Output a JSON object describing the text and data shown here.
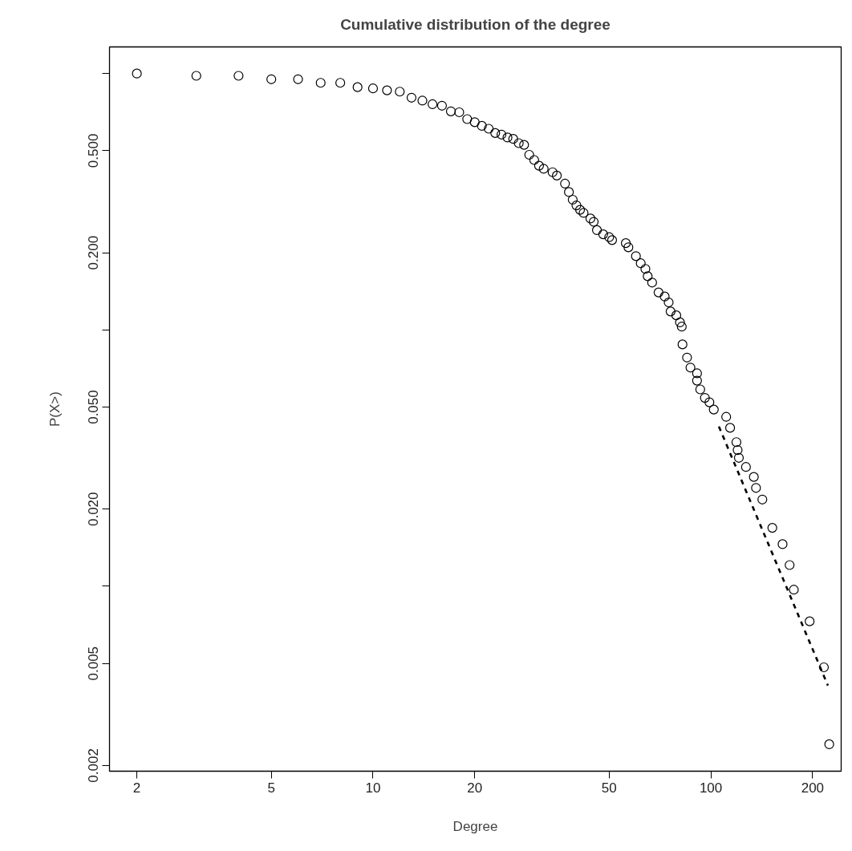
{
  "chart_data": {
    "type": "scatter",
    "title": "Cumulative distribution of the degree",
    "xlabel": "Degree",
    "ylabel": "P(X>)",
    "log": "xy",
    "grid": false,
    "xlim": [
      1.66,
      243
    ],
    "ylim": [
      0.0019,
      1.27
    ],
    "xticks": [
      2,
      5,
      10,
      20,
      50,
      100,
      200
    ],
    "yticks": [
      {
        "value": 0.002,
        "label": "0.002"
      },
      {
        "value": 0.005,
        "label": "0.005"
      },
      {
        "value": 0.01,
        "label": null
      },
      {
        "value": 0.02,
        "label": "0.020"
      },
      {
        "value": 0.05,
        "label": "0.050"
      },
      {
        "value": 0.1,
        "label": null
      },
      {
        "value": 0.2,
        "label": "0.200"
      },
      {
        "value": 0.5,
        "label": "0.500"
      },
      {
        "value": 1,
        "label": null
      }
    ],
    "series": [
      {
        "color": "#000000",
        "marker": "circle",
        "x": [
          2,
          3,
          4,
          5,
          6,
          7,
          8,
          9,
          10,
          11,
          12,
          13,
          14,
          15,
          16,
          17,
          18,
          19,
          20,
          21,
          22,
          23,
          24,
          25,
          26,
          27,
          28,
          29,
          30,
          31,
          32,
          34,
          35,
          37,
          38,
          39,
          40,
          41,
          42,
          44,
          45,
          46,
          48,
          50,
          51,
          56,
          57,
          60,
          62,
          64,
          65,
          67,
          70,
          73,
          75,
          76,
          79,
          81,
          82,
          82.4,
          85,
          87,
          91,
          91,
          93,
          96,
          99,
          102,
          111,
          114,
          119,
          120,
          121,
          127,
          134,
          136,
          142,
          152,
          163,
          171,
          176,
          196,
          216,
          224
        ],
        "values": [
          1.0,
          0.98,
          0.98,
          0.95,
          0.95,
          0.92,
          0.92,
          0.885,
          0.875,
          0.86,
          0.85,
          0.805,
          0.784,
          0.759,
          0.749,
          0.712,
          0.706,
          0.664,
          0.646,
          0.625,
          0.609,
          0.586,
          0.578,
          0.563,
          0.556,
          0.535,
          0.527,
          0.482,
          0.46,
          0.437,
          0.425,
          0.412,
          0.4,
          0.372,
          0.345,
          0.322,
          0.306,
          0.294,
          0.286,
          0.272,
          0.264,
          0.245,
          0.236,
          0.23,
          0.224,
          0.218,
          0.21,
          0.194,
          0.182,
          0.173,
          0.162,
          0.153,
          0.14,
          0.135,
          0.128,
          0.118,
          0.114,
          0.107,
          0.103,
          0.0878,
          0.078,
          0.0713,
          0.0677,
          0.0634,
          0.0586,
          0.0543,
          0.0522,
          0.0489,
          0.0458,
          0.0415,
          0.0365,
          0.034,
          0.0317,
          0.0292,
          0.0267,
          0.0242,
          0.0218,
          0.0169,
          0.0146,
          0.0121,
          0.0097,
          0.0073,
          0.00483,
          0.00242
        ]
      },
      {
        "type": "line",
        "color": "#000000",
        "line_style": "dashed",
        "x": [
          105.6,
          222
        ],
        "values": [
          0.042,
          0.0041
        ]
      }
    ]
  }
}
